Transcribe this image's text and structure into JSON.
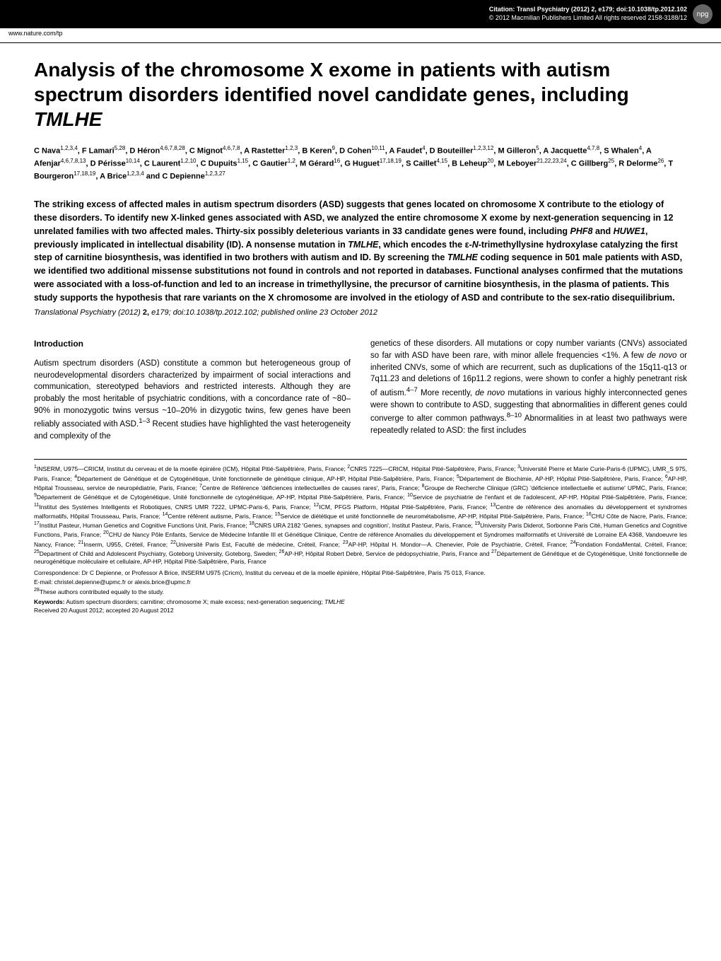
{
  "header": {
    "citation_line1": "Citation: Transl Psychiatry (2012) 2, e179; doi:10.1038/tp.2012.102",
    "citation_line2": "© 2012 Macmillan Publishers Limited   All rights reserved 2158-3188/12",
    "url": "www.nature.com/tp",
    "badge": "npg"
  },
  "title_pre": "Analysis of the chromosome X exome in patients with autism spectrum disorders identified novel candidate genes, including ",
  "title_gene": "TMLHE",
  "authors_html": "C Nava<sup>1,2,3,4</sup>, F Lamari<sup>5,28</sup>, D Héron<sup>4,6,7,8,28</sup>, C Mignot<sup>4,6,7,8</sup>, A Rastetter<sup>1,2,3</sup>, B Keren<sup>9</sup>, D Cohen<sup>10,11</sup>, A Faudet<sup>4</sup>, D Bouteiller<sup>1,2,3,12</sup>, M Gilleron<sup>5</sup>, A Jacquette<sup>4,7,8</sup>, S Whalen<sup>4</sup>, A Afenjar<sup>4,6,7,8,13</sup>, D Périsse<sup>10,14</sup>, C Laurent<sup>1,2,10</sup>, C Dupuits<sup>1,15</sup>, C Gautier<sup>1,2</sup>, M Gérard<sup>16</sup>, G Huguet<sup>17,18,19</sup>, S Caillet<sup>4,15</sup>, B Leheup<sup>20</sup>, M Leboyer<sup>21,22,23,24</sup>, C Gillberg<sup>25</sup>, R Delorme<sup>26</sup>, T Bourgeron<sup>17,18,19</sup>, A Brice<sup>1,2,3,4</sup> and C Depienne<sup>1,2,3,27</sup>",
  "abstract": "The striking excess of affected males in autism spectrum disorders (ASD) suggests that genes located on chromosome X contribute to the etiology of these disorders. To identify new X-linked genes associated with ASD, we analyzed the entire chromosome X exome by next-generation sequencing in 12 unrelated families with two affected males. Thirty-six possibly deleterious variants in 33 candidate genes were found, including <span class=\"italic\">PHF8</span> and <span class=\"italic\">HUWE1</span>, previously implicated in intellectual disability (ID). A nonsense mutation in <span class=\"italic\">TMLHE</span>, which encodes the ε-<span class=\"italic\">N</span>-trimethyllysine hydroxylase catalyzing the first step of carnitine biosynthesis, was identified in two brothers with autism and ID. By screening the <span class=\"italic\">TMLHE</span> coding sequence in 501 male patients with ASD, we identified two additional missense substitutions not found in controls and not reported in databases. Functional analyses confirmed that the mutations were associated with a loss-of-function and led to an increase in trimethyllysine, the precursor of carnitine biosynthesis, in the plasma of patients. This study supports the hypothesis that rare variants on the X chromosome are involved in the etiology of ASD and contribute to the sex-ratio disequilibrium.",
  "pub_line": "<span class=\"italic\">Translational Psychiatry</span> (2012) <span class=\"bold\">2,</span> e179; doi:10.1038/tp.2012.102; published online 23 October 2012",
  "intro_head": "Introduction",
  "col_left": "Autism spectrum disorders (ASD) constitute a common but heterogeneous group of neurodevelopmental disorders characterized by impairment of social interactions and communication, stereotyped behaviors and restricted interests. Although they are probably the most heritable of psychiatric conditions, with a concordance rate of ~80–90% in monozygotic twins versus ~10–20% in dizygotic twins, few genes have been reliably associated with ASD.<sup>1–3</sup> Recent studies have highlighted the vast heterogeneity and complexity of the",
  "col_right": "genetics of these disorders. All mutations or copy number variants (CNVs) associated so far with ASD have been rare, with minor allele frequencies <1%. A few <span class=\"italic\">de novo</span> or inherited CNVs, some of which are recurrent, such as duplications of the 15q11-q13 or 7q11.23 and deletions of 16p11.2 regions, were shown to confer a highly penetrant risk of autism.<sup>4–7</sup> More recently, <span class=\"italic\">de novo</span> mutations in various highly interconnected genes were shown to contribute to ASD, suggesting that abnormalities in different genes could converge to alter common pathways.<sup>8–10</sup> Abnormalities in at least two pathways were repeatedly related to ASD: the first includes",
  "affiliations": "<sup>1</sup>INSERM, U975—CRICM, Institut du cerveau et de la moelle épinière (ICM), Hôpital Pitié-Salpêtrière, Paris, France; <sup>2</sup>CNRS 7225—CRICM, Hôpital Pitié-Salpêtrière, Paris, France; <sup>3</sup>Université Pierre et Marie Curie-Paris-6 (UPMC), UMR_S 975, Paris, France; <sup>4</sup>Département de Génétique et de Cytogénétique, Unité fonctionnelle de génétique clinique, AP-HP, Hôpital Pitié-Salpêtrière, Paris, France; <sup>5</sup>Département de Biochimie, AP-HP, Hôpital Pitié-Salpêtrière, Paris, France; <sup>6</sup>AP-HP, Hôpital Trousseau, service de neuropédiatrie, Paris, France; <sup>7</sup>Centre de Référence 'déficiences intellectuelles de causes rares', Paris, France; <sup>8</sup>Groupe de Recherche Clinique (GRC) 'déficience intellectuelle et autisme' UPMC, Paris, France; <sup>9</sup>Département de Génétique et de Cytogénétique, Unité fonctionnelle de cytogénétique, AP-HP, Hôpital Pitié-Salpêtrière, Paris, France; <sup>10</sup>Service de psychiatrie de l'enfant et de l'adolescent, AP-HP, Hôpital Pitié-Salpêtrière, Paris, France; <sup>11</sup>Institut des Systèmes Intelligents et Robotiques, CNRS UMR 7222, UPMC-Paris-6, Paris, France; <sup>12</sup>ICM, PFGS Platform, Hôpital Pitié-Salpêtrière, Paris, France; <sup>13</sup>Centre de référence des anomalies du développement et syndromes malformatifs, Hôpital Trousseau, Paris, France; <sup>14</sup>Centre référent autisme, Paris, France; <sup>15</sup>Service de diététique et unité fonctionnelle de neurométabolisme, AP-HP, Hôpital Pitié-Salpêtrière, Paris, France; <sup>16</sup>CHU Côte de Nacre, Paris, France; <sup>17</sup>Institut Pasteur, Human Genetics and Cognitive Functions Unit, Paris, France; <sup>18</sup>CNRS URA 2182 'Genes, synapses and cognition', Institut Pasteur, Paris, France; <sup>19</sup>University Paris Diderot, Sorbonne Paris Cité, Human Genetics and Cognitive Functions, Paris, France; <sup>20</sup>CHU de Nancy Pôle Enfants, Service de Médecine Infantile III et Génétique Clinique, Centre de référence Anomalies du développement et Syndromes malformatifs et Université de Lorraine EA 4368, Vandoeuvre les Nancy, France; <sup>21</sup>Inserm, U955, Créteil, France; <sup>22</sup>Université Paris Est, Faculté de médecine, Créteil, France; <sup>23</sup>AP-HP, Hôpital H. Mondor—A. Chenevier, Pole de Psychiatrie, Créteil, France; <sup>24</sup>Fondation FondaMental, Créteil, France; <sup>25</sup>Department of Child and Adolescent Psychiatry, Goteborg University, Goteborg, Sweden; <sup>26</sup>AP-HP, Hôpital Robert Debré, Service de pédopsychiatrie, Paris, France and <sup>27</sup>Département de Génétique et de Cytogénétique, Unité fonctionnelle de neurogénétique moléculaire et cellulaire, AP-HP, Hôpital Pitié-Salpêtrière, Paris, France",
  "correspondence": "Correspondence: Dr C Depienne, or Professor A Brice, INSERM U975 (Cricm), Institut du cerveau et de la moelle épinière, Hôpital Pitié-Salpêtrière, Paris 75 013, France.",
  "email": "E-mail: christel.depienne@upmc.fr or alexis.brice@upmc.fr",
  "note28": "<sup>28</sup>These authors contributed equally to the study.",
  "keywords": "<span class=\"bold\">Keywords:</span> Autism spectrum disorders; carnitine; chromosome X; male excess; next-generation sequencing; <span class=\"italic\">TMLHE</span>",
  "received": "Received 20 August 2012; accepted 20 August 2012"
}
